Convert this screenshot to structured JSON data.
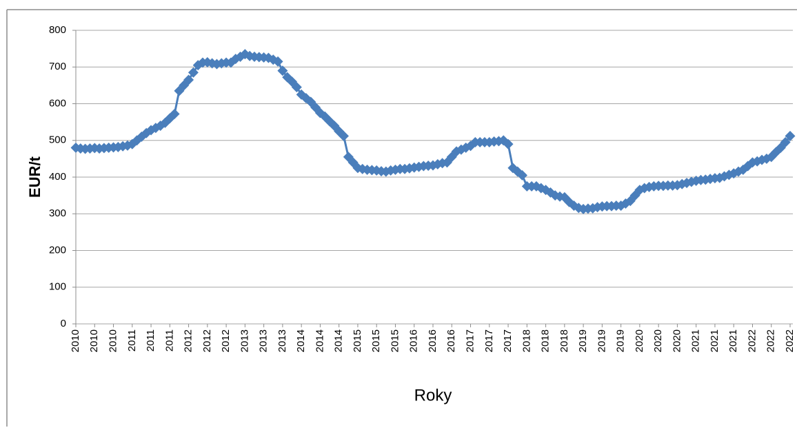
{
  "chart_data": {
    "type": "line",
    "xlabel": "Roky",
    "ylabel": "EUR/t",
    "color": "#4a7ebb",
    "grid": true,
    "ylim": [
      0,
      800
    ],
    "yticks": [
      0,
      100,
      200,
      300,
      400,
      500,
      600,
      700,
      800
    ],
    "categories": [
      "2010",
      null,
      null,
      null,
      "2010",
      null,
      null,
      null,
      "2010",
      null,
      null,
      null,
      "2011",
      null,
      null,
      null,
      "2011",
      null,
      null,
      null,
      "2011",
      null,
      null,
      null,
      "2012",
      null,
      null,
      null,
      "2012",
      null,
      null,
      null,
      "2012",
      null,
      null,
      null,
      "2013",
      null,
      null,
      null,
      "2013",
      null,
      null,
      null,
      "2013",
      null,
      null,
      null,
      "2014",
      null,
      null,
      null,
      "2014",
      null,
      null,
      null,
      "2014",
      null,
      null,
      null,
      "2015",
      null,
      null,
      null,
      "2015",
      null,
      null,
      null,
      "2015",
      null,
      null,
      null,
      "2016",
      null,
      null,
      null,
      "2016",
      null,
      null,
      null,
      "2016",
      null,
      null,
      null,
      "2017",
      null,
      null,
      null,
      "2017",
      null,
      null,
      null,
      "2017",
      null,
      null,
      null,
      "2018",
      null,
      null,
      null,
      "2018",
      null,
      null,
      null,
      "2018",
      null,
      null,
      null,
      "2019",
      null,
      null,
      null,
      "2019",
      null,
      null,
      null,
      "2019",
      null,
      null,
      null,
      "2020",
      null,
      null,
      null,
      "2020",
      null,
      null,
      null,
      "2020",
      null,
      null,
      null,
      "2021",
      null,
      null,
      null,
      "2021",
      null,
      null,
      null,
      "2021",
      null,
      null,
      null,
      "2022",
      null,
      null,
      null,
      "2022",
      null,
      null,
      null,
      "2022"
    ],
    "values": [
      480,
      478,
      477,
      478,
      479,
      478,
      479,
      480,
      481,
      482,
      484,
      486,
      490,
      500,
      510,
      520,
      528,
      534,
      540,
      548,
      560,
      572,
      635,
      650,
      665,
      685,
      705,
      712,
      713,
      710,
      708,
      710,
      712,
      712,
      722,
      728,
      735,
      730,
      728,
      727,
      726,
      725,
      720,
      715,
      690,
      672,
      660,
      645,
      625,
      615,
      605,
      590,
      575,
      565,
      552,
      540,
      525,
      512,
      455,
      440,
      425,
      422,
      420,
      419,
      418,
      416,
      415,
      418,
      420,
      422,
      422,
      424,
      426,
      428,
      430,
      431,
      432,
      435,
      438,
      440,
      455,
      470,
      475,
      480,
      485,
      495,
      495,
      495,
      495,
      497,
      498,
      500,
      490,
      425,
      415,
      405,
      375,
      375,
      375,
      370,
      365,
      358,
      350,
      347,
      345,
      332,
      322,
      316,
      313,
      314,
      315,
      318,
      320,
      321,
      321,
      322,
      322,
      328,
      335,
      350,
      365,
      370,
      373,
      375,
      376,
      376,
      377,
      377,
      378,
      381,
      384,
      387,
      390,
      392,
      393,
      395,
      397,
      398,
      402,
      406,
      410,
      415,
      420,
      430,
      440,
      443,
      447,
      450,
      455,
      468,
      480,
      495,
      512
    ]
  }
}
